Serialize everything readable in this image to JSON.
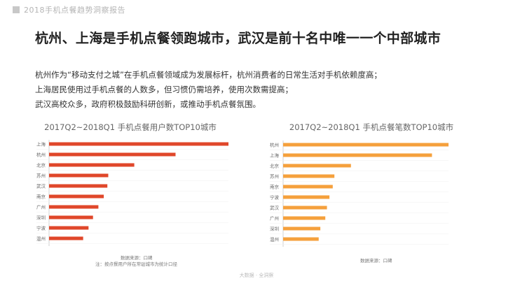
{
  "header": {
    "report_title": "2018手机点餐趋势洞察报告",
    "headline": "杭州、上海是手机点餐领跑城市，武汉是前十名中唯一一个中部城市"
  },
  "body": {
    "lines": [
      "杭州作为“移动支付之城”在手机点餐领域成为发展标杆，杭州消费者的日常生活对手机依赖度高；",
      "上海居民使用过手机点餐的人数多，但习惯仍需培养，使用次数需提高；",
      "武汉高校众多，政府积极鼓励科研创新，或推动手机点餐氛围。"
    ]
  },
  "chart_data": [
    {
      "type": "bar",
      "orientation": "horizontal",
      "title": "2017Q2~2018Q1 手机点餐用户数TOP10城市",
      "categories": [
        "上海",
        "杭州",
        "北京",
        "苏州",
        "武汉",
        "南京",
        "广州",
        "深圳",
        "宁波",
        "温州"
      ],
      "values": [
        100,
        70.5,
        47.5,
        33,
        32.5,
        30.5,
        27.5,
        24.5,
        22,
        19
      ],
      "color": "#e0472a",
      "notes": [
        "数据来源：口碑",
        "注：按点餐用户所在常驻城市为统计口径"
      ]
    },
    {
      "type": "bar",
      "orientation": "horizontal",
      "title": "2017Q2~2018Q1 手机点餐笔数TOP10城市",
      "categories": [
        "杭州",
        "上海",
        "北京",
        "苏州",
        "南京",
        "宁波",
        "武汉",
        "广州",
        "深圳",
        "温州"
      ],
      "values": [
        100,
        90,
        41,
        31,
        30,
        28,
        26.5,
        25.5,
        22.5,
        21.5
      ],
      "color": "#f5a03c",
      "notes": [
        "数据来源：口碑"
      ]
    }
  ],
  "footer": {
    "watermark": "大数据 · 全洞察"
  }
}
